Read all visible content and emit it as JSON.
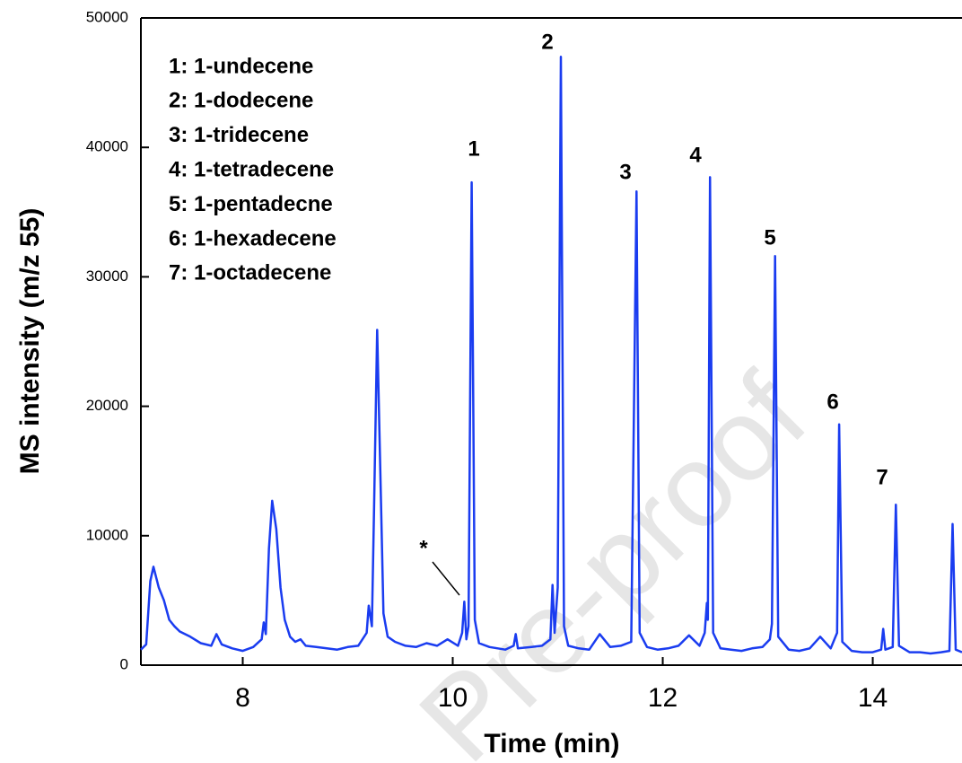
{
  "chart_data": {
    "type": "line",
    "x_label": "Time (min)",
    "y_label": "MS intensity (m/z 55)",
    "watermark": "Pre-proof",
    "xlim": [
      7.03,
      14.85
    ],
    "ylim": [
      0,
      50000
    ],
    "xticks": [
      8,
      10,
      12,
      14
    ],
    "yticks": [
      0,
      10000,
      20000,
      30000,
      40000,
      50000
    ],
    "key": [
      "1: 1-undecene",
      "2: 1-dodecene",
      "3: 1-tridecene",
      "4: 1-tetradecene",
      "5: 1-pentadecne",
      "6: 1-hexadecene",
      "7: 1-octadecene"
    ],
    "peak_labels": [
      "1",
      "2",
      "3",
      "4",
      "5",
      "6",
      "7",
      "*"
    ],
    "x": [
      7.03,
      7.08,
      7.12,
      7.15,
      7.2,
      7.25,
      7.3,
      7.35,
      7.4,
      7.5,
      7.6,
      7.7,
      7.75,
      7.8,
      7.9,
      8.0,
      8.1,
      8.18,
      8.2,
      8.22,
      8.25,
      8.28,
      8.32,
      8.36,
      8.4,
      8.45,
      8.5,
      8.55,
      8.6,
      8.7,
      8.8,
      8.9,
      9.0,
      9.1,
      9.18,
      9.2,
      9.23,
      9.25,
      9.28,
      9.31,
      9.34,
      9.38,
      9.45,
      9.55,
      9.65,
      9.75,
      9.85,
      9.95,
      10.05,
      10.09,
      10.11,
      10.13,
      10.15,
      10.18,
      10.21,
      10.25,
      10.35,
      10.5,
      10.58,
      10.6,
      10.62,
      10.75,
      10.85,
      10.93,
      10.95,
      10.97,
      11.0,
      11.03,
      11.06,
      11.1,
      11.2,
      11.3,
      11.4,
      11.5,
      11.6,
      11.7,
      11.75,
      11.78,
      11.85,
      11.95,
      12.05,
      12.15,
      12.25,
      12.35,
      12.4,
      12.42,
      12.43,
      12.45,
      12.48,
      12.55,
      12.65,
      12.75,
      12.85,
      12.95,
      13.02,
      13.04,
      13.07,
      13.1,
      13.2,
      13.3,
      13.4,
      13.5,
      13.6,
      13.66,
      13.68,
      13.71,
      13.8,
      13.9,
      14.0,
      14.08,
      14.1,
      14.12,
      14.19,
      14.22,
      14.25,
      14.35,
      14.45,
      14.55,
      14.65,
      14.73,
      14.76,
      14.79,
      14.85
    ],
    "series": [
      {
        "color": "#1a3cf0",
        "values": [
          1200,
          1600,
          6500,
          7600,
          6000,
          5000,
          3500,
          3000,
          2600,
          2200,
          1700,
          1500,
          2400,
          1600,
          1300,
          1100,
          1400,
          2000,
          3300,
          2400,
          9000,
          12700,
          10500,
          6000,
          3500,
          2200,
          1800,
          2000,
          1500,
          1400,
          1300,
          1200,
          1400,
          1500,
          2500,
          4600,
          3000,
          12000,
          25900,
          15000,
          4000,
          2200,
          1800,
          1500,
          1400,
          1700,
          1500,
          2000,
          1500,
          2500,
          4900,
          2000,
          3000,
          37300,
          3500,
          1700,
          1400,
          1200,
          1500,
          2400,
          1300,
          1400,
          1500,
          2000,
          6200,
          2500,
          6000,
          47000,
          3000,
          1500,
          1300,
          1200,
          2400,
          1400,
          1500,
          1800,
          36600,
          2500,
          1400,
          1200,
          1300,
          1500,
          2300,
          1500,
          2500,
          4800,
          3500,
          37700,
          2500,
          1300,
          1200,
          1100,
          1300,
          1400,
          2000,
          3200,
          31600,
          2200,
          1200,
          1100,
          1300,
          2200,
          1300,
          2500,
          18600,
          1800,
          1100,
          1000,
          1000,
          1200,
          2800,
          1200,
          1400,
          12400,
          1500,
          1000,
          1000,
          900,
          1000,
          1100,
          10900,
          1200,
          1000
        ]
      }
    ]
  }
}
